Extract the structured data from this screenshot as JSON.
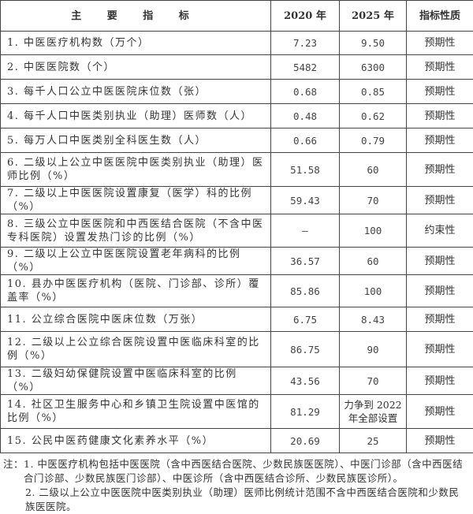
{
  "table": {
    "headers": [
      "主 要 指 标",
      "2020 年",
      "2025 年",
      "指标性质"
    ],
    "rows": [
      {
        "name": "1. 中医医疗机构数（万个）",
        "y2020": "7.23",
        "y2025": "9.50",
        "nature": "预期性"
      },
      {
        "name": "2. 中医医院数（个）",
        "y2020": "5482",
        "y2025": "6300",
        "nature": "预期性"
      },
      {
        "name": "3. 每千人口公立中医医院床位数（张）",
        "y2020": "0.68",
        "y2025": "0.85",
        "nature": "预期性"
      },
      {
        "name": "4. 每千人口中医类别执业（助理）医师数（人）",
        "y2020": "0.48",
        "y2025": "0.62",
        "nature": "预期性"
      },
      {
        "name": "5. 每万人口中医类别全科医生数（人）",
        "y2020": "0.66",
        "y2025": "0.79",
        "nature": "预期性"
      },
      {
        "name": "6. 二级以上公立中医医院中医类别执业（助理）医师比例（%）",
        "y2020": "51.58",
        "y2025": "60",
        "nature": "预期性"
      },
      {
        "name": "7. 二级以上中医医院设置康复（医学）科的比例（%）",
        "y2020": "59.43",
        "y2025": "70",
        "nature": "预期性"
      },
      {
        "name": "8. 三级公立中医医院和中西医结合医院（不含中医专科医院）设置发热门诊的比例（%）",
        "y2020": "—",
        "y2025": "100",
        "nature": "约束性"
      },
      {
        "name": "9. 二级以上公立中医医院设置老年病科的比例（%）",
        "y2020": "36.57",
        "y2025": "60",
        "nature": "预期性"
      },
      {
        "name": "10. 县办中医医疗机构（医院、门诊部、诊所）覆盖率（%）",
        "y2020": "85.86",
        "y2025": "100",
        "nature": "预期性"
      },
      {
        "name": "11. 公立综合医院中医床位数（万张）",
        "y2020": "6.75",
        "y2025": "8.43",
        "nature": "预期性"
      },
      {
        "name": "12. 二级以上公立综合医院设置中医临床科室的比例（%）",
        "y2020": "86.75",
        "y2025": "90",
        "nature": "预期性"
      },
      {
        "name": "13. 二级妇幼保健院设置中医临床科室的比例（%）",
        "y2020": "43.56",
        "y2025": "70",
        "nature": "预期性"
      },
      {
        "name": "14. 社区卫生服务中心和乡镇卫生院设置中医馆的比例（%）",
        "y2020": "81.29",
        "y2025": "力争到 2022 年全部设置",
        "nature": "预期性"
      },
      {
        "name": "15. 公民中医药健康文化素养水平（%）",
        "y2020": "20.69",
        "y2025": "25",
        "nature": "预期性"
      }
    ]
  },
  "notes": {
    "label": "注：",
    "items": [
      "1. 中医医疗机构包括中医医院（含中西医结合医院、少数民族医医院）、中医门诊部（含中西医结合门诊部、少数民族医门诊部）、中医诊所（含中西医结合诊所、少数民族医诊所）。",
      "2. 二级以上公立中医医院中医类别执业（助理）医师比例统计范围不含中西医结合医院和少数民族医医院。"
    ]
  }
}
